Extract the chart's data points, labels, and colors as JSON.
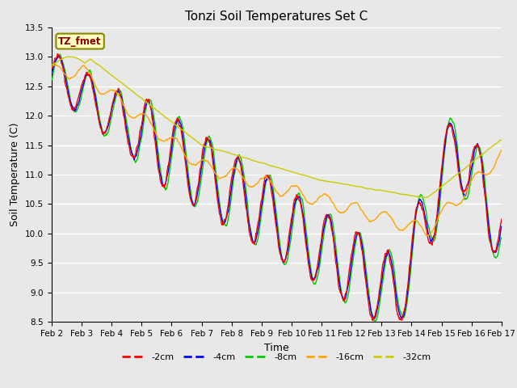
{
  "title": "Tonzi Soil Temperatures Set C",
  "xlabel": "Time",
  "ylabel": "Soil Temperature (C)",
  "ylim": [
    8.5,
    13.5
  ],
  "annotation_label": "TZ_fmet",
  "annotation_color": "#8B0000",
  "annotation_bg": "#FFFFC0",
  "bg_color": "#E8E8E8",
  "line_colors": {
    "-2cm": "#FF0000",
    "-4cm": "#0000FF",
    "-8cm": "#00CC00",
    "-16cm": "#FFA500",
    "-32cm": "#CCCC00"
  },
  "legend_labels": [
    "-2cm",
    "-4cm",
    "-8cm",
    "-16cm",
    "-32cm"
  ],
  "xtick_labels": [
    "Feb 2",
    "Feb 3",
    "Feb 4",
    "Feb 5",
    "Feb 6",
    "Feb 7",
    "Feb 8",
    "Feb 9",
    "Feb 10",
    "Feb 11",
    "Feb 12",
    "Feb 13",
    "Feb 14",
    "Feb 15",
    "Feb 16",
    "Feb 17"
  ]
}
